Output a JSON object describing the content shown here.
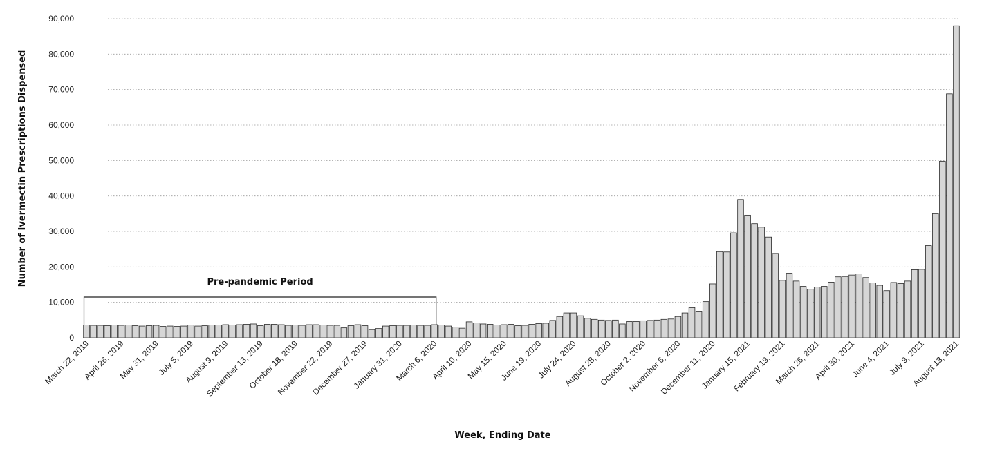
{
  "chart_data": {
    "type": "bar",
    "title": "",
    "xlabel": "Week, Ending Date",
    "ylabel": "Number of Ivermectin Prescriptions Dispensed",
    "ylim": [
      0,
      90000
    ],
    "y_ticks": [
      "0",
      "10,000",
      "20,000",
      "30,000",
      "40,000",
      "50,000",
      "60,000",
      "70,000",
      "80,000",
      "90,000"
    ],
    "grid": true,
    "legend": "none",
    "bar_color": "#d6d6d6",
    "x_tick_labels": [
      "March 22, 2019",
      "April 26, 2019",
      "May 31, 2019",
      "July 5, 2019",
      "August 9, 2019",
      "September 13, 2019",
      "October 18, 2019",
      "November 22, 2019",
      "December 27, 2019",
      "January 31, 2020",
      "March 6, 2020",
      "April 10, 2020",
      "May 15, 2020",
      "June 19, 2020",
      "July 24, 2020",
      "August 28, 2020",
      "October 2, 2020",
      "November 6, 2020",
      "December 11, 2020",
      "January 15, 2021",
      "February 19, 2021",
      "March 26, 2021",
      "April 30, 2021",
      "June 4, 2021",
      "July 9, 2021",
      "August 13, 2021"
    ],
    "tick_every": 5,
    "annotation": {
      "text": "Pre-pandemic Period",
      "from_week": "March 22, 2019",
      "to_week": "March 6, 2020",
      "level": 11500
    },
    "values": [
      3600,
      3500,
      3500,
      3400,
      3600,
      3500,
      3600,
      3400,
      3300,
      3400,
      3500,
      3200,
      3300,
      3200,
      3300,
      3600,
      3300,
      3400,
      3600,
      3600,
      3700,
      3600,
      3700,
      3800,
      3900,
      3400,
      3800,
      3800,
      3700,
      3500,
      3600,
      3500,
      3700,
      3700,
      3600,
      3500,
      3500,
      2800,
      3400,
      3700,
      3400,
      2300,
      2600,
      3300,
      3400,
      3500,
      3500,
      3600,
      3500,
      3500,
      3700,
      3600,
      3300,
      3000,
      2700,
      4500,
      4200,
      3900,
      3800,
      3600,
      3700,
      3800,
      3400,
      3500,
      3800,
      4000,
      4100,
      4900,
      6000,
      7000,
      7000,
      6200,
      5500,
      5200,
      5000,
      4900,
      5000,
      3900,
      4600,
      4600,
      4800,
      4900,
      5000,
      5200,
      5300,
      6000,
      7000,
      8500,
      7500,
      10200,
      15200,
      24300,
      24200,
      29600,
      39000,
      34600,
      32200,
      31200,
      28400,
      23800,
      16200,
      18200,
      16000,
      14500,
      13700,
      14300,
      14500,
      15700,
      17200,
      17300,
      17700,
      18000,
      17000,
      15500,
      14800,
      13300,
      15600,
      15300,
      16000,
      19200,
      19300,
      26000,
      35000,
      49800,
      68800,
      88000
    ]
  }
}
